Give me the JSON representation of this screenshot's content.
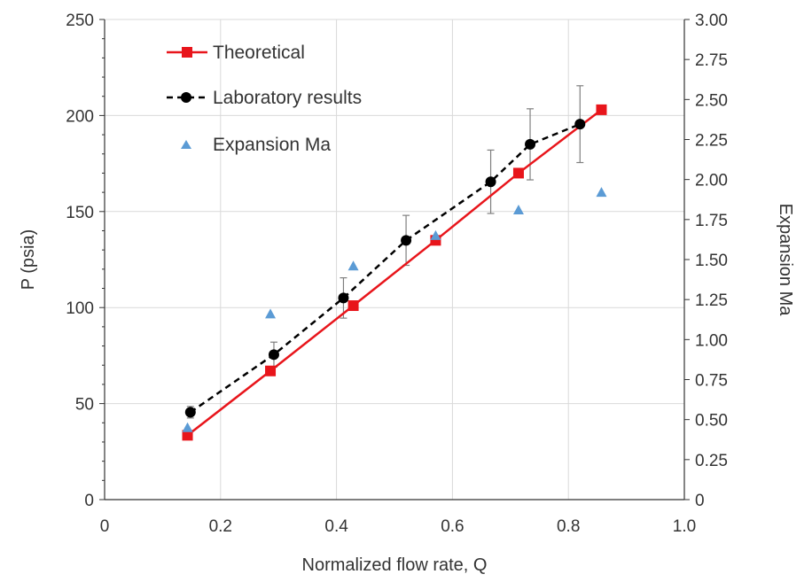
{
  "chart_data": {
    "type": "scatter",
    "xlabel": "Normalized flow rate, Q",
    "ylabel": "P (psia)",
    "y2label": "Expansion Ma",
    "xlim": [
      0,
      1.0
    ],
    "ylim": [
      0,
      250
    ],
    "y2lim": [
      0,
      3.0
    ],
    "x_ticks": [
      "0",
      "0.2",
      "0.4",
      "0.6",
      "0.8",
      "1.0"
    ],
    "y_ticks": [
      "0",
      "50",
      "100",
      "150",
      "200",
      "250"
    ],
    "y2_ticks": [
      "0",
      "0.25",
      "0.50",
      "0.75",
      "1.00",
      "1.25",
      "1.50",
      "1.75",
      "2.00",
      "2.25",
      "2.50",
      "2.75",
      "3.00"
    ],
    "grid": true,
    "legend_position": "top-left",
    "series": [
      {
        "name": "Theoretical",
        "axis": "left",
        "style": "solid-line-square",
        "color": "#e8151b",
        "x": [
          0.143,
          0.286,
          0.429,
          0.571,
          0.714,
          0.857
        ],
        "y": [
          33.5,
          67,
          101,
          135,
          170,
          203
        ]
      },
      {
        "name": "Laboratory results",
        "axis": "left",
        "style": "dashed-line-circle",
        "color": "#000000",
        "x": [
          0.148,
          0.292,
          0.412,
          0.52,
          0.666,
          0.734,
          0.82
        ],
        "y": [
          45.5,
          75.5,
          105,
          135,
          165.5,
          185,
          195.5
        ],
        "error": [
          3,
          6.5,
          10.5,
          13,
          16.5,
          18.5,
          20
        ]
      },
      {
        "name": "Expansion Ma",
        "axis": "right",
        "style": "triangle-marker",
        "color": "#5b9bd5",
        "x": [
          0.143,
          0.286,
          0.429,
          0.571,
          0.714,
          0.857
        ],
        "y": [
          0.45,
          1.16,
          1.46,
          1.65,
          1.81,
          1.92
        ]
      }
    ]
  }
}
